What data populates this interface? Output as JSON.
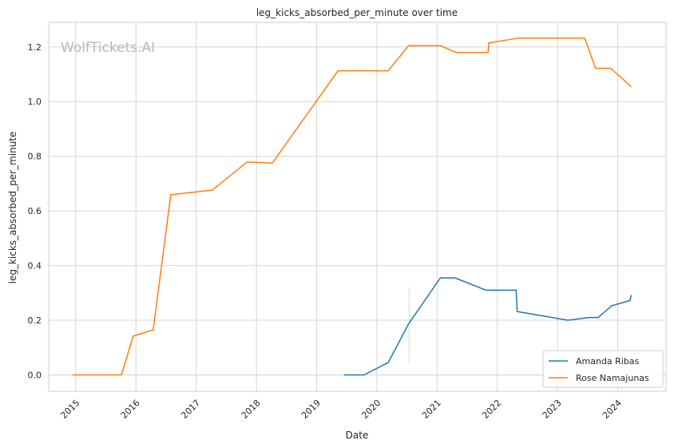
{
  "chart_data": {
    "type": "line",
    "title": "leg_kicks_absorbed_per_minute over time",
    "xlabel": "Date",
    "ylabel": "leg_kicks_absorbed_per_minute",
    "watermark": "WolfTickets.AI",
    "xlim": [
      "2014-07-21",
      "2024-10-20"
    ],
    "ylim": [
      -0.06,
      1.29
    ],
    "x_ticks": [
      "2015",
      "2016",
      "2017",
      "2018",
      "2019",
      "2020",
      "2021",
      "2022",
      "2023",
      "2024"
    ],
    "y_ticks": [
      "0.0",
      "0.2",
      "0.4",
      "0.6",
      "0.8",
      "1.0",
      "1.2"
    ],
    "grid": true,
    "legend_position": "lower-right",
    "colors": {
      "Amanda Ribas": "#1f77b4",
      "Rose Namajunas": "#ff7f0e",
      "grid": "#d5d5d5",
      "frame": "#cccccc"
    },
    "series": [
      {
        "name": "Amanda Ribas",
        "points": [
          [
            "2019-06-15",
            0.0
          ],
          [
            "2019-10-15",
            0.0
          ],
          [
            "2020-03-10",
            0.045
          ],
          [
            "2020-07-10",
            0.185
          ],
          [
            "2021-01-20",
            0.355
          ],
          [
            "2021-04-20",
            0.355
          ],
          [
            "2021-10-25",
            0.31
          ],
          [
            "2022-04-25",
            0.31
          ],
          [
            "2022-05-01",
            0.232
          ],
          [
            "2023-03-05",
            0.2
          ],
          [
            "2023-07-10",
            0.21
          ],
          [
            "2023-09-05",
            0.21
          ],
          [
            "2023-11-25",
            0.253
          ],
          [
            "2024-03-15",
            0.272
          ],
          [
            "2024-03-23",
            0.292
          ]
        ],
        "ci": {
          "x": "2020-07-15",
          "low": 0.045,
          "high": 0.32
        }
      },
      {
        "name": "Rose Namajunas",
        "points": [
          [
            "2014-12-12",
            0.0
          ],
          [
            "2015-10-05",
            0.0
          ],
          [
            "2015-12-15",
            0.142
          ],
          [
            "2016-04-15",
            0.165
          ],
          [
            "2016-07-30",
            0.659
          ],
          [
            "2017-04-08",
            0.676
          ],
          [
            "2017-11-04",
            0.779
          ],
          [
            "2018-04-07",
            0.775
          ],
          [
            "2019-05-11",
            1.113
          ],
          [
            "2020-03-10",
            1.113
          ],
          [
            "2020-07-12",
            1.205
          ],
          [
            "2021-01-20",
            1.205
          ],
          [
            "2021-04-24",
            1.18
          ],
          [
            "2021-11-06",
            1.18
          ],
          [
            "2021-11-10",
            1.215
          ],
          [
            "2022-05-07",
            1.232
          ],
          [
            "2023-06-15",
            1.232
          ],
          [
            "2023-08-20",
            1.122
          ],
          [
            "2023-11-20",
            1.122
          ],
          [
            "2024-03-23",
            1.055
          ]
        ]
      }
    ]
  }
}
